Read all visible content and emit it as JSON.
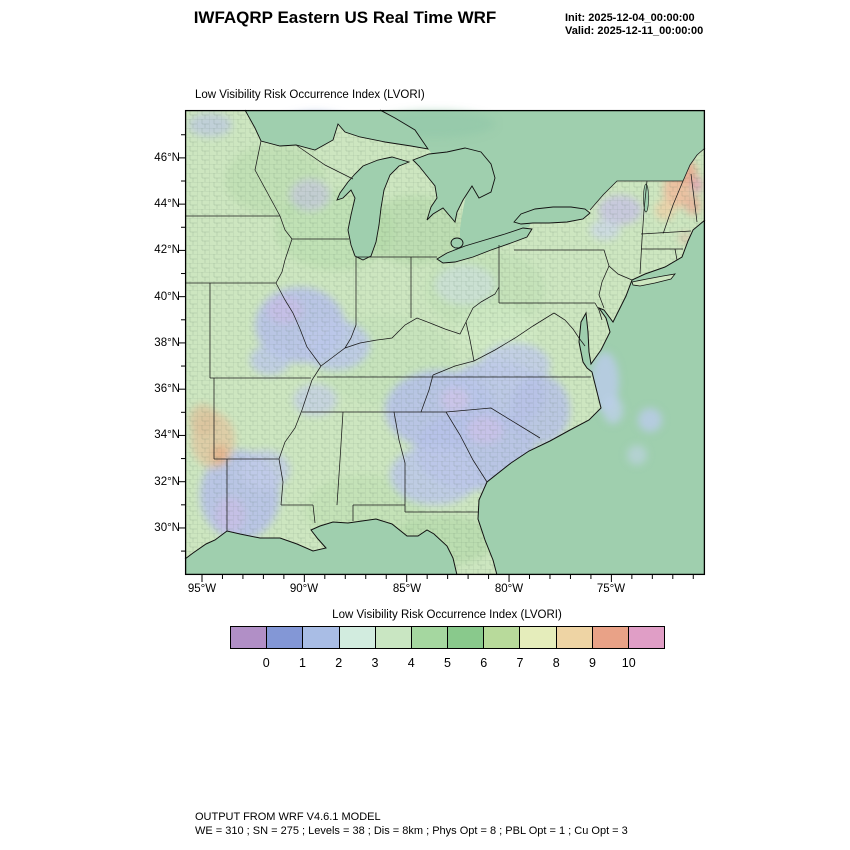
{
  "header": {
    "title": "IWFAQRP Eastern US Real Time WRF",
    "init_label": "Init: 2025-12-04_00:00:00",
    "valid_label": "Valid: 2025-12-11_00:00:00"
  },
  "map": {
    "title": "Low Visibility Risk Occurrence Index   (LVORI)",
    "y_axis_labels": [
      "46°N",
      "44°N",
      "42°N",
      "40°N",
      "38°N",
      "36°N",
      "34°N",
      "32°N",
      "30°N"
    ],
    "x_axis_labels": [
      "95°W",
      "90°W",
      "85°W",
      "80°W",
      "75°W"
    ]
  },
  "colorbar": {
    "title": "Low Visibility Risk Occurrence Index  (LVORI)",
    "tick_labels": [
      "0",
      "1",
      "2",
      "3",
      "4",
      "5",
      "6",
      "7",
      "8",
      "9",
      "10"
    ],
    "colors": [
      "#b18fc6",
      "#8397d6",
      "#a9bde5",
      "#d2ecdf",
      "#c9e6c2",
      "#a5d7a0",
      "#89c98c",
      "#b8da9b",
      "#e5edbb",
      "#eed4a4",
      "#e9a287",
      "#e09ec6"
    ]
  },
  "footer": {
    "line1": "OUTPUT FROM WRF V4.6.1 MODEL",
    "line2": "WE = 310 ; SN = 275 ; Levels = 38 ; Dis = 8km ; Phys Opt = 8 ; PBL Opt = 1 ; Cu Opt = 3"
  }
}
